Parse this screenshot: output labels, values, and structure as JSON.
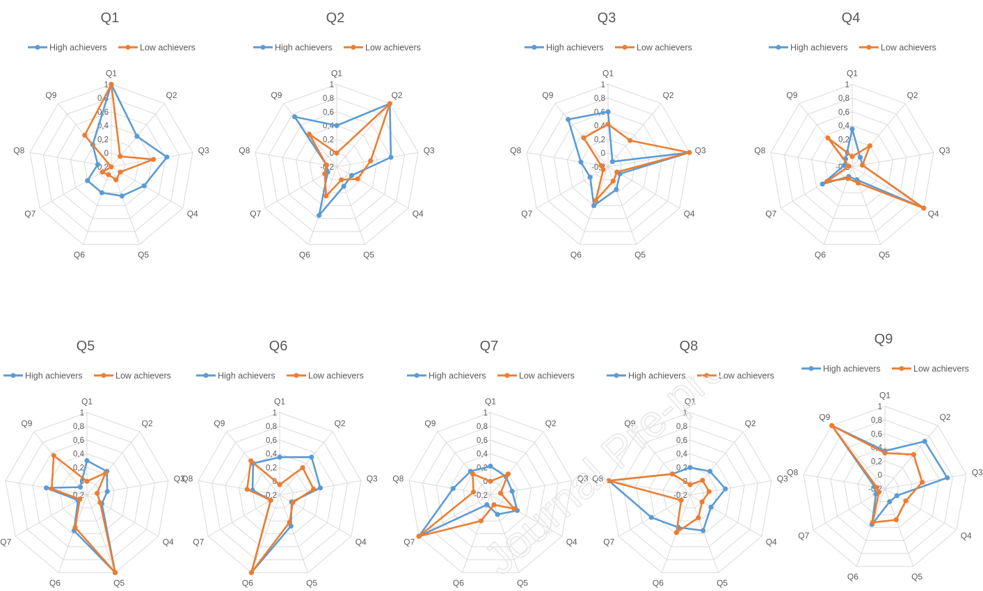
{
  "colors": {
    "high": "#5b9bd5",
    "low": "#ed7d31",
    "grid": "#d9d9d9",
    "text": "#595959",
    "title": "#595959"
  },
  "watermark_text": "Journal Pre-proof",
  "axis_labels": [
    "Q1",
    "Q2",
    "Q3",
    "Q4",
    "Q5",
    "Q6",
    "Q7",
    "Q8",
    "Q9"
  ],
  "tick_labels": [
    "-0,2",
    "0",
    "0,2",
    "0,4",
    "0,6",
    "0,8",
    "1"
  ],
  "chart_data": [
    {
      "type": "radar",
      "title": "Q1",
      "categories": [
        "Q1",
        "Q2",
        "Q3",
        "Q4",
        "Q5",
        "Q6",
        "Q7",
        "Q8",
        "Q9"
      ],
      "rlim": [
        -0.2,
        1
      ],
      "legend": "top",
      "series": [
        {
          "name": "High achievers",
          "values": [
            1.0,
            0.38,
            0.62,
            0.35,
            0.25,
            0.2,
            0.2,
            0.0,
            0.22
          ]
        },
        {
          "name": "Low achievers",
          "values": [
            1.0,
            0.0,
            0.42,
            -0.05,
            0.0,
            -0.08,
            -0.05,
            -0.2,
            0.4
          ]
        }
      ]
    },
    {
      "type": "radar",
      "title": "Q2",
      "categories": [
        "Q1",
        "Q2",
        "Q3",
        "Q4",
        "Q5",
        "Q6",
        "Q7",
        "Q8",
        "Q9"
      ],
      "rlim": [
        -0.2,
        1
      ],
      "legend": "top",
      "series": [
        {
          "name": "High achievers",
          "values": [
            0.4,
            1.0,
            0.6,
            0.05,
            0.1,
            0.55,
            -0.05,
            -0.05,
            0.75
          ]
        },
        {
          "name": "Low achievers",
          "values": [
            0.0,
            1.0,
            0.3,
            0.15,
            0.0,
            0.25,
            0.0,
            -0.05,
            0.42
          ]
        }
      ]
    },
    {
      "type": "radar",
      "title": "Q3",
      "categories": [
        "Q1",
        "Q2",
        "Q3",
        "Q4",
        "Q5",
        "Q6",
        "Q7",
        "Q8",
        "Q9"
      ],
      "rlim": [
        -0.2,
        1
      ],
      "legend": "top",
      "series": [
        {
          "name": "High achievers",
          "values": [
            0.6,
            -0.1,
            1.0,
            0.0,
            0.15,
            0.4,
            0.1,
            0.2,
            0.7
          ]
        },
        {
          "name": "Low achievers",
          "values": [
            0.42,
            0.3,
            1.0,
            -0.05,
            0.02,
            0.32,
            -0.12,
            -0.1,
            0.35
          ]
        }
      ]
    },
    {
      "type": "radar",
      "title": "Q4",
      "categories": [
        "Q1",
        "Q2",
        "Q3",
        "Q4",
        "Q5",
        "Q6",
        "Q7",
        "Q8",
        "Q9"
      ],
      "rlim": [
        -0.2,
        1
      ],
      "legend": "top",
      "series": [
        {
          "name": "High achievers",
          "values": [
            0.35,
            -0.02,
            -0.05,
            1.0,
            0.0,
            -0.05,
            0.3,
            -0.08,
            -0.05
          ]
        },
        {
          "name": "Low achievers",
          "values": [
            -0.05,
            0.2,
            -0.05,
            1.0,
            0.05,
            -0.02,
            0.22,
            -0.15,
            0.35
          ]
        }
      ]
    },
    {
      "type": "radar",
      "title": "Q5",
      "categories": [
        "Q1",
        "Q2",
        "Q3",
        "Q4",
        "Q5",
        "Q6",
        "Q7",
        "Q8",
        "Q9"
      ],
      "rlim": [
        -0.2,
        1
      ],
      "legend": "top",
      "series": [
        {
          "name": "High achievers",
          "values": [
            0.3,
            0.25,
            0.1,
            0.05,
            1.0,
            0.35,
            -0.05,
            0.4,
            -0.05
          ]
        },
        {
          "name": "Low achievers",
          "values": [
            0.0,
            0.22,
            -0.05,
            0.02,
            1.0,
            0.3,
            -0.08,
            0.32,
            0.55
          ]
        }
      ]
    },
    {
      "type": "radar",
      "title": "Q6",
      "categories": [
        "Q1",
        "Q2",
        "Q3",
        "Q4",
        "Q5",
        "Q6",
        "Q7",
        "Q8",
        "Q9"
      ],
      "rlim": [
        -0.2,
        1
      ],
      "legend": "top",
      "series": [
        {
          "name": "High achievers",
          "values": [
            0.35,
            0.52,
            0.4,
            0.0,
            0.28,
            1.0,
            -0.05,
            0.2,
            0.4
          ]
        },
        {
          "name": "Low achievers",
          "values": [
            -0.05,
            0.32,
            0.3,
            0.02,
            0.22,
            1.0,
            -0.05,
            0.28,
            0.45
          ]
        }
      ]
    },
    {
      "type": "radar",
      "title": "Q7",
      "categories": [
        "Q1",
        "Q2",
        "Q3",
        "Q4",
        "Q5",
        "Q6",
        "Q7",
        "Q8",
        "Q9"
      ],
      "rlim": [
        -0.2,
        1
      ],
      "legend": "top",
      "series": [
        {
          "name": "High achievers",
          "values": [
            0.22,
            0.15,
            0.12,
            0.25,
            0.1,
            -0.05,
            1.0,
            0.35,
            0.25
          ]
        },
        {
          "name": "Low achievers",
          "values": [
            0.0,
            0.2,
            -0.05,
            0.2,
            -0.05,
            0.2,
            1.0,
            0.05,
            0.2
          ]
        }
      ]
    },
    {
      "type": "radar",
      "title": "Q8",
      "categories": [
        "Q1",
        "Q2",
        "Q3",
        "Q4",
        "Q5",
        "Q6",
        "Q7",
        "Q8",
        "Q9"
      ],
      "rlim": [
        -0.2,
        1
      ],
      "legend": "top",
      "series": [
        {
          "name": "High achievers",
          "values": [
            0.2,
            0.25,
            0.32,
            0.15,
            0.35,
            0.3,
            0.45,
            1.0,
            0.2
          ]
        },
        {
          "name": "Low achievers",
          "values": [
            -0.05,
            0.08,
            0.08,
            0.0,
            0.15,
            0.38,
            -0.05,
            1.0,
            0.2
          ]
        }
      ]
    },
    {
      "type": "radar",
      "title": "Q9",
      "categories": [
        "Q1",
        "Q2",
        "Q3",
        "Q4",
        "Q5",
        "Q6",
        "Q7",
        "Q8",
        "Q9"
      ],
      "rlim": [
        -0.2,
        1
      ],
      "legend": "top",
      "series": [
        {
          "name": "High achievers",
          "values": [
            0.35,
            0.7,
            0.72,
            0.0,
            0.0,
            0.35,
            -0.05,
            -0.05,
            1.0
          ]
        },
        {
          "name": "Low achievers",
          "values": [
            0.32,
            0.45,
            0.35,
            0.15,
            0.28,
            0.32,
            -0.1,
            -0.08,
            1.0
          ]
        }
      ]
    }
  ]
}
